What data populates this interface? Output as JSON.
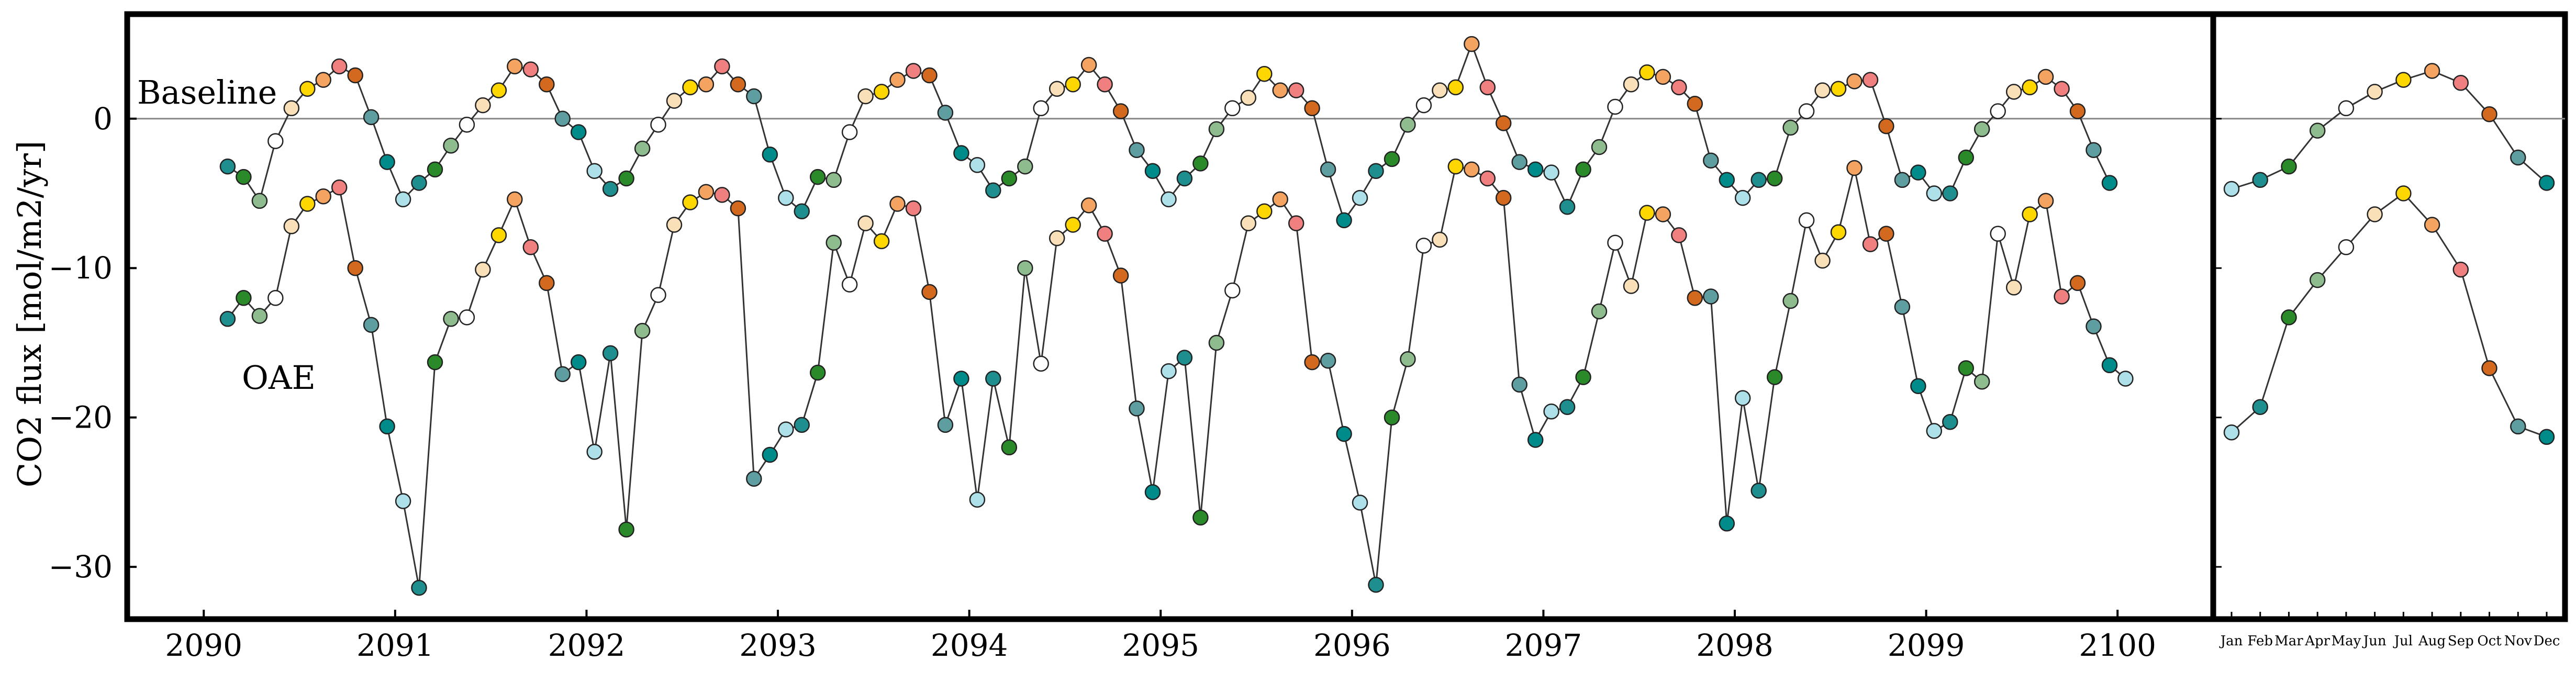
{
  "chart_data": [
    {
      "type": "line",
      "panel": "main",
      "ylabel": "CO2 flux [mol/m2/yr]",
      "xlim": [
        2089.6,
        2100.5
      ],
      "ylim": [
        -33.5,
        7
      ],
      "xticks": [
        2090,
        2091,
        2092,
        2093,
        2094,
        2095,
        2096,
        2097,
        2098,
        2099,
        2100
      ],
      "yticks": [
        -30,
        -20,
        -10,
        0
      ],
      "ytick_labels": [
        "−30",
        "−20",
        "−10",
        "0"
      ],
      "reference_line": 0,
      "annotations": [
        "Baseline",
        "OAE"
      ],
      "month_colors": [
        "#aee0ea",
        "#1f8e8e",
        "#2a8a2a",
        "#8fbc8f",
        "#ffffff",
        "#fae0b9",
        "#ffd700",
        "#f4a460",
        "#f08080",
        "#d2691e",
        "#5f9ea0",
        "#008b8b"
      ],
      "start": 2090.125,
      "step": 0.0833333,
      "series": [
        {
          "name": "Baseline",
          "values": [
            -3.2,
            -3.9,
            -5.5,
            -1.5,
            0.7,
            2.0,
            2.6,
            3.5,
            2.9,
            0.1,
            -2.9,
            -5.4,
            -4.3,
            -3.4,
            -1.8,
            -0.4,
            0.9,
            1.9,
            3.5,
            3.3,
            2.3,
            0.0,
            -0.9,
            -3.5,
            -4.7,
            -4.0,
            -2.0,
            -0.4,
            1.2,
            2.1,
            2.3,
            3.5,
            2.3,
            1.5,
            -2.4,
            -5.3,
            -6.2,
            -3.9,
            -4.1,
            -0.9,
            1.5,
            1.8,
            2.6,
            3.2,
            2.9,
            0.4,
            -2.3,
            -3.1,
            -4.8,
            -4.0,
            -3.2,
            0.7,
            2.0,
            2.3,
            3.6,
            2.3,
            0.5,
            -2.1,
            -3.5,
            -5.4,
            -4.0,
            -3.0,
            -0.7,
            0.7,
            1.4,
            3.0,
            1.9,
            1.9,
            0.7,
            -3.4,
            -6.8,
            -5.3,
            -3.5,
            -2.7,
            -0.4,
            0.9,
            1.9,
            2.1,
            5.0,
            2.1,
            -0.3,
            -2.9,
            -3.4,
            -3.6,
            -5.9,
            -3.4,
            -1.9,
            0.8,
            2.3,
            3.1,
            2.8,
            2.1,
            1.0,
            -2.8,
            -4.1,
            -5.3,
            -4.1,
            -4.0,
            -0.6,
            0.5,
            1.9,
            2.0,
            2.5,
            2.6,
            -0.5,
            -4.1,
            -3.6,
            -5.0,
            -5.0,
            -2.6,
            -0.7,
            0.5,
            1.8,
            2.1,
            2.8,
            2.0,
            0.5,
            -2.1,
            -4.3
          ]
        },
        {
          "name": "OAE",
          "values": [
            -13.4,
            -12.0,
            -13.2,
            -12.0,
            -7.2,
            -5.7,
            -5.2,
            -4.6,
            -10.0,
            -13.8,
            -20.6,
            -25.6,
            -31.4,
            -16.3,
            -13.4,
            -13.3,
            -10.1,
            -7.8,
            -5.4,
            -8.6,
            -11.0,
            -17.1,
            -16.3,
            -22.3,
            -15.7,
            -27.5,
            -14.2,
            -11.8,
            -7.1,
            -5.6,
            -4.9,
            -5.1,
            -6.0,
            -24.1,
            -22.5,
            -20.8,
            -20.5,
            -17.0,
            -8.3,
            -11.1,
            -7.0,
            -8.2,
            -5.7,
            -6.0,
            -11.6,
            -20.5,
            -17.4,
            -25.5,
            -17.4,
            -22.0,
            -10.0,
            -16.4,
            -8.0,
            -7.1,
            -5.8,
            -7.7,
            -10.5,
            -19.4,
            -25.0,
            -16.9,
            -16.0,
            -26.7,
            -15.0,
            -11.5,
            -7.0,
            -6.2,
            -5.4,
            -7.0,
            -16.3,
            -16.2,
            -21.1,
            -25.7,
            -31.2,
            -20.0,
            -16.1,
            -8.5,
            -8.1,
            -3.2,
            -3.4,
            -4.0,
            -5.3,
            -17.8,
            -21.5,
            -19.6,
            -19.3,
            -17.3,
            -12.9,
            -8.3,
            -11.2,
            -6.3,
            -6.4,
            -7.8,
            -12.0,
            -11.9,
            -27.1,
            -18.7,
            -24.9,
            -17.3,
            -12.2,
            -6.8,
            -9.5,
            -7.6,
            -3.3,
            -8.4,
            -7.7,
            -12.6,
            -17.9,
            -20.9,
            -20.3,
            -16.7,
            -17.6,
            -7.7,
            -11.3,
            -6.4,
            -5.5,
            -11.9,
            -11.0,
            -13.9,
            -16.5,
            -17.4
          ]
        }
      ]
    },
    {
      "type": "line",
      "panel": "climatology",
      "ylim": [
        -33.5,
        7
      ],
      "categories": [
        "Jan",
        "Feb",
        "Mar",
        "Apr",
        "May",
        "Jun",
        "Jul",
        "Aug",
        "Sep",
        "Oct",
        "Nov",
        "Dec"
      ],
      "reference_line": 0,
      "series": [
        {
          "name": "Baseline",
          "values": [
            -4.7,
            -4.1,
            -3.2,
            -0.8,
            0.7,
            1.8,
            2.6,
            3.2,
            2.4,
            0.3,
            -2.6,
            -4.3
          ]
        },
        {
          "name": "OAE",
          "values": [
            -21.0,
            -19.3,
            -13.3,
            -10.8,
            -8.6,
            -6.4,
            -5.0,
            -7.1,
            -10.1,
            -16.7,
            -20.6,
            -21.3
          ]
        }
      ]
    }
  ]
}
